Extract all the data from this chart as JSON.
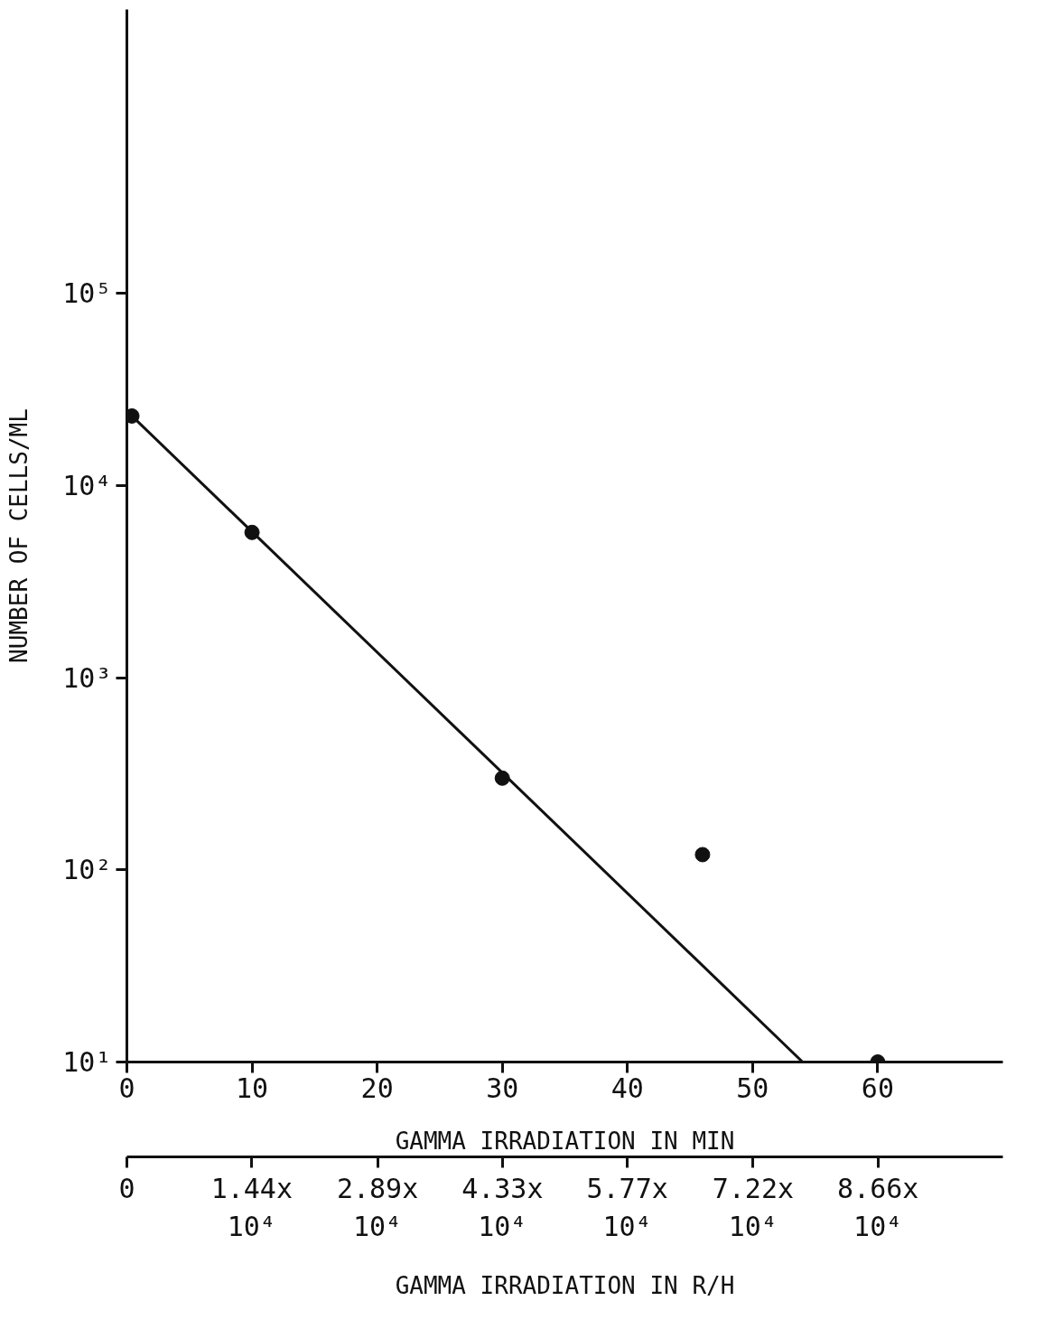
{
  "chart_data": {
    "type": "scatter",
    "xlabel": "GAMMA IRRADIATION IN MIN",
    "ylabel": "NUMBER OF CELLS/ML",
    "x2label": "GAMMA IRRADIATION IN R/H",
    "series": [
      {
        "marker": "circle",
        "color": "#111111",
        "x": [
          0.4,
          10,
          30,
          46,
          60
        ],
        "values": [
          23000,
          5700,
          300,
          120,
          10
        ]
      },
      {
        "type": "line",
        "marker": "none",
        "color": "#111111",
        "x": [
          0.4,
          54
        ],
        "values": [
          23000,
          10
        ]
      }
    ],
    "line_style": "solid",
    "log": "y",
    "xlim": [
      0,
      70
    ],
    "xticks": [
      0,
      10,
      20,
      30,
      40,
      50,
      60
    ],
    "x2lim": [
      0,
      101000
    ],
    "x2ticks": [
      0,
      {
        "value": 14400,
        "label": "1.44x 10⁴"
      },
      {
        "value": 28900,
        "label": "2.89x 10⁴"
      },
      {
        "value": 43300,
        "label": "4.33x 10⁴"
      },
      {
        "value": 57700,
        "label": "5.77x 10⁴"
      },
      {
        "value": 72200,
        "label": "7.22x 10⁴"
      },
      {
        "value": 86600,
        "label": "8.66x 10⁴"
      }
    ],
    "ylim": [
      10,
      3000000
    ],
    "yticks": [
      {
        "value": 10,
        "label": "10¹"
      },
      {
        "value": 100,
        "label": "10²"
      },
      {
        "value": 1000,
        "label": "10³"
      },
      {
        "value": 10000,
        "label": "10⁴"
      },
      {
        "value": 100000,
        "label": "10⁵"
      }
    ]
  }
}
